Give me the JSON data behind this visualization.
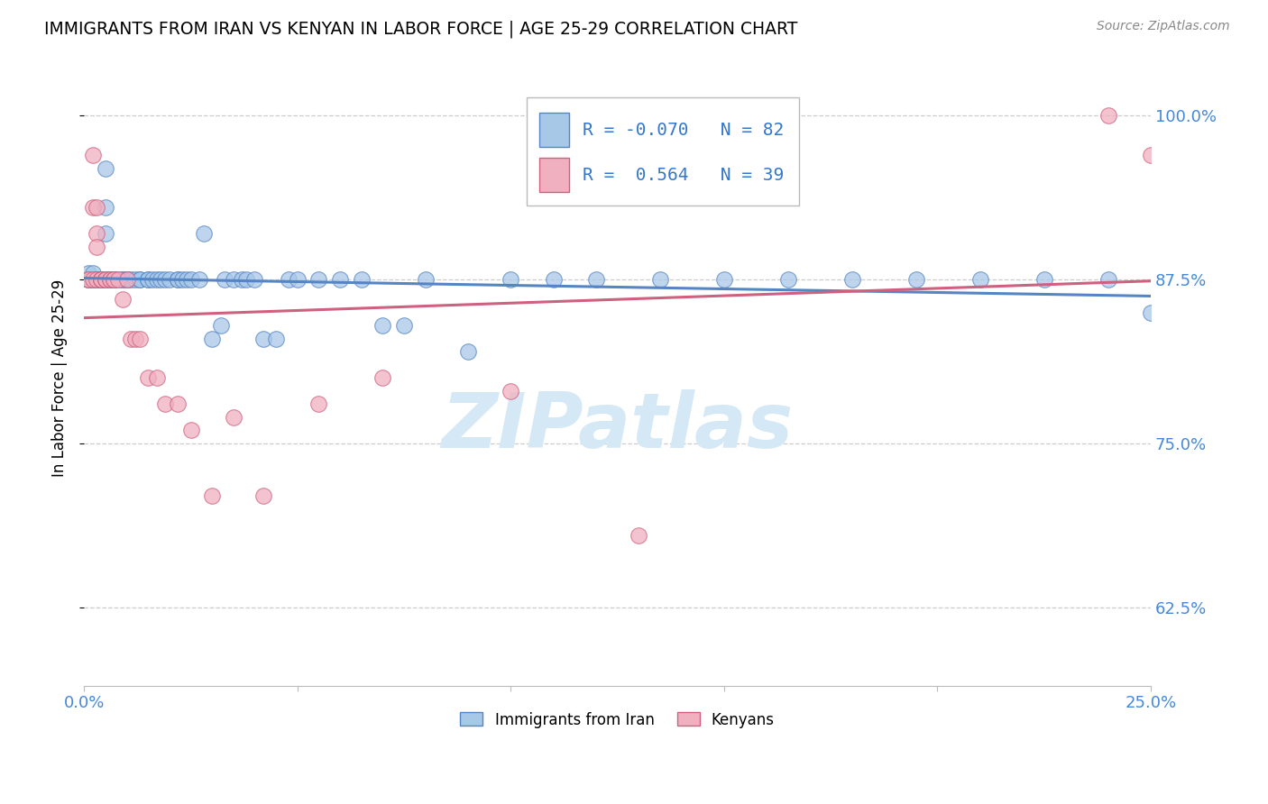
{
  "title": "IMMIGRANTS FROM IRAN VS KENYAN IN LABOR FORCE | AGE 25-29 CORRELATION CHART",
  "source": "Source: ZipAtlas.com",
  "ylabel": "In Labor Force | Age 25-29",
  "ytick_labels": [
    "62.5%",
    "75.0%",
    "87.5%",
    "100.0%"
  ],
  "ytick_values": [
    0.625,
    0.75,
    0.875,
    1.0
  ],
  "xmin": 0.0,
  "xmax": 0.25,
  "ymin": 0.565,
  "ymax": 1.035,
  "legend_iran_R": "-0.070",
  "legend_iran_N": "82",
  "legend_kenyan_R": "0.564",
  "legend_kenyan_N": "39",
  "color_iran": "#A8C8E8",
  "color_kenyan": "#F0B0C0",
  "color_iran_line": "#5585C5",
  "color_kenyan_line": "#D06080",
  "watermark_color": "#D5E8F5",
  "iran_x": [
    0.001,
    0.001,
    0.001,
    0.001,
    0.002,
    0.002,
    0.002,
    0.002,
    0.002,
    0.002,
    0.003,
    0.003,
    0.003,
    0.003,
    0.003,
    0.004,
    0.004,
    0.004,
    0.004,
    0.004,
    0.005,
    0.005,
    0.005,
    0.005,
    0.006,
    0.006,
    0.006,
    0.007,
    0.007,
    0.008,
    0.009,
    0.009,
    0.01,
    0.01,
    0.011,
    0.012,
    0.013,
    0.013,
    0.015,
    0.015,
    0.016,
    0.017,
    0.018,
    0.019,
    0.02,
    0.022,
    0.022,
    0.023,
    0.024,
    0.025,
    0.027,
    0.028,
    0.03,
    0.032,
    0.033,
    0.035,
    0.037,
    0.038,
    0.04,
    0.042,
    0.045,
    0.048,
    0.05,
    0.055,
    0.06,
    0.065,
    0.07,
    0.075,
    0.08,
    0.09,
    0.1,
    0.11,
    0.12,
    0.135,
    0.15,
    0.165,
    0.18,
    0.195,
    0.21,
    0.225,
    0.24,
    0.25
  ],
  "iran_y": [
    0.875,
    0.875,
    0.88,
    0.875,
    0.875,
    0.875,
    0.875,
    0.875,
    0.875,
    0.88,
    0.875,
    0.875,
    0.875,
    0.875,
    0.875,
    0.875,
    0.875,
    0.875,
    0.875,
    0.875,
    0.96,
    0.93,
    0.91,
    0.875,
    0.875,
    0.875,
    0.875,
    0.875,
    0.875,
    0.875,
    0.875,
    0.875,
    0.875,
    0.875,
    0.875,
    0.875,
    0.875,
    0.875,
    0.875,
    0.875,
    0.875,
    0.875,
    0.875,
    0.875,
    0.875,
    0.875,
    0.875,
    0.875,
    0.875,
    0.875,
    0.875,
    0.91,
    0.83,
    0.84,
    0.875,
    0.875,
    0.875,
    0.875,
    0.875,
    0.83,
    0.83,
    0.875,
    0.875,
    0.875,
    0.875,
    0.875,
    0.84,
    0.84,
    0.875,
    0.82,
    0.875,
    0.875,
    0.875,
    0.875,
    0.875,
    0.875,
    0.875,
    0.875,
    0.875,
    0.875,
    0.875,
    0.85
  ],
  "kenyan_x": [
    0.001,
    0.001,
    0.002,
    0.002,
    0.002,
    0.003,
    0.003,
    0.003,
    0.003,
    0.004,
    0.004,
    0.004,
    0.005,
    0.005,
    0.005,
    0.006,
    0.006,
    0.007,
    0.007,
    0.008,
    0.009,
    0.01,
    0.011,
    0.012,
    0.013,
    0.015,
    0.017,
    0.019,
    0.022,
    0.025,
    0.03,
    0.035,
    0.042,
    0.055,
    0.07,
    0.1,
    0.13,
    0.24,
    0.25
  ],
  "kenyan_y": [
    0.875,
    0.875,
    0.97,
    0.93,
    0.875,
    0.93,
    0.91,
    0.9,
    0.875,
    0.875,
    0.875,
    0.875,
    0.875,
    0.875,
    0.875,
    0.875,
    0.875,
    0.875,
    0.875,
    0.875,
    0.86,
    0.875,
    0.83,
    0.83,
    0.83,
    0.8,
    0.8,
    0.78,
    0.78,
    0.76,
    0.71,
    0.77,
    0.71,
    0.78,
    0.8,
    0.79,
    0.68,
    1.0,
    0.97
  ]
}
